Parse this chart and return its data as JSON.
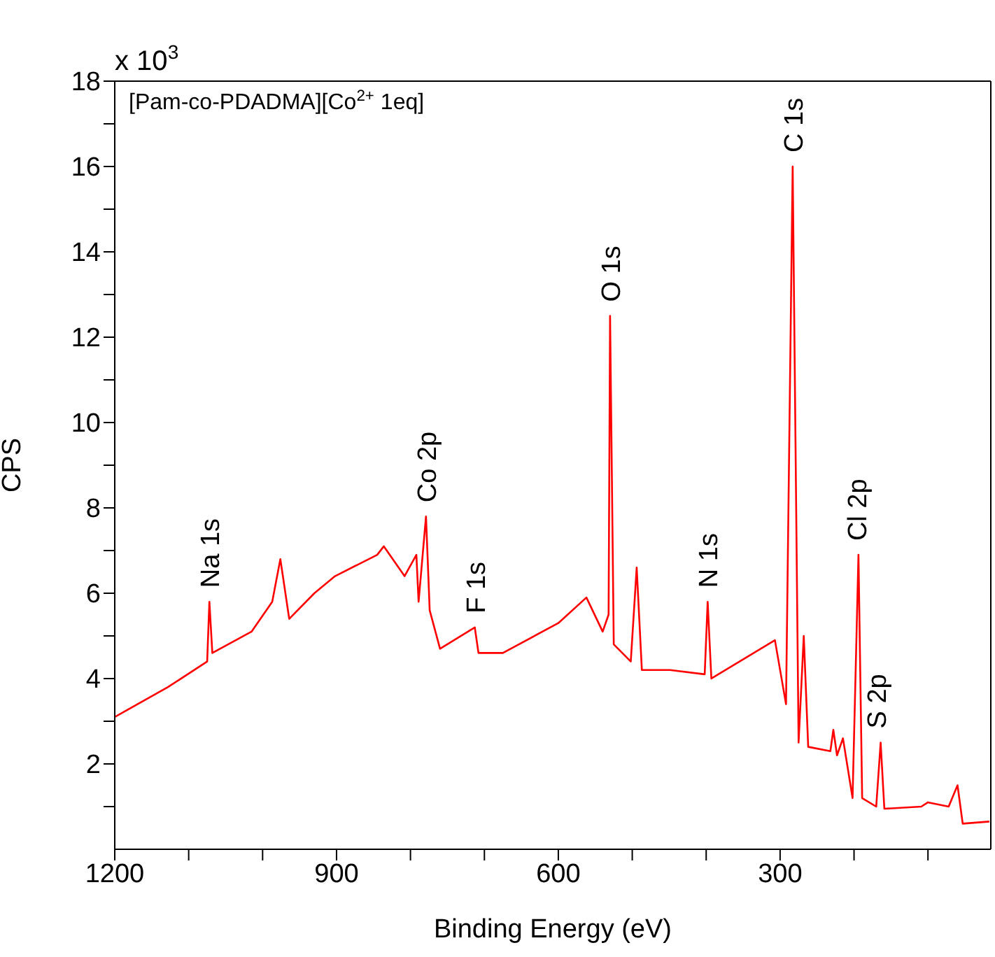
{
  "chart_data": {
    "type": "line",
    "title": "[Pam-co-PDADMA][Co$^{2+}$ 1eq]",
    "xlabel": "Binding Energy (eV)",
    "ylabel": "CPS",
    "x": [
      1200,
      1128,
      1075,
      1072,
      1068,
      1015,
      987,
      976,
      964,
      930,
      902,
      845,
      836,
      808,
      792,
      789,
      779,
      774,
      760,
      713,
      708,
      675,
      600,
      562,
      540,
      532,
      530,
      525,
      502,
      494,
      487,
      449,
      402,
      398,
      393,
      307,
      292,
      283,
      275,
      268,
      262,
      232,
      228,
      223,
      215,
      202,
      194,
      189,
      170,
      164,
      159,
      109,
      100,
      72,
      60,
      53,
      17
    ],
    "series": [
      {
        "color": "#ff0000",
        "values": [
          3.1,
          3.8,
          4.4,
          5.8,
          4.6,
          5.1,
          5.8,
          6.8,
          5.4,
          6.0,
          6.4,
          6.9,
          7.1,
          6.4,
          6.9,
          5.8,
          7.8,
          5.6,
          4.7,
          5.2,
          4.6,
          4.6,
          5.3,
          5.9,
          5.1,
          5.5,
          12.5,
          4.8,
          4.4,
          6.6,
          4.2,
          4.2,
          4.1,
          5.8,
          4.0,
          4.9,
          3.4,
          16.0,
          2.5,
          5.0,
          2.4,
          2.3,
          2.8,
          2.2,
          2.6,
          1.2,
          6.9,
          1.2,
          1.0,
          2.5,
          0.95,
          1.0,
          1.1,
          1.0,
          1.5,
          0.6,
          0.65
        ]
      }
    ],
    "xlim": [
      1200,
      15
    ],
    "ylim": [
      0,
      18
    ],
    "xticks": [
      1200,
      {
        "value": 1100,
        "label": null
      },
      {
        "value": 1000,
        "label": null
      },
      900,
      {
        "value": 800,
        "label": null
      },
      {
        "value": 700,
        "label": null
      },
      600,
      {
        "value": 500,
        "label": null
      },
      {
        "value": 400,
        "label": null
      },
      300,
      {
        "value": 200,
        "label": null
      },
      {
        "value": 100,
        "label": null
      }
    ],
    "yticks": [
      {
        "value": 1,
        "label": null
      },
      2,
      {
        "value": 3,
        "label": null
      },
      4,
      {
        "value": 5,
        "label": null
      },
      6,
      {
        "value": 7,
        "label": null
      },
      8,
      {
        "value": 9,
        "label": null
      },
      10,
      {
        "value": 11,
        "label": null
      },
      12,
      {
        "value": 13,
        "label": null
      },
      14,
      {
        "value": 15,
        "label": null
      },
      16,
      {
        "value": 17,
        "label": null
      },
      18
    ],
    "annotations": [
      "x 10$^{3}$",
      {
        "text": "Na 1s",
        "x": 1072,
        "y": 5.8
      },
      {
        "text": "Co 2p",
        "x": 779,
        "y": 7.8
      },
      {
        "text": "F 1s",
        "x": 713,
        "y": 5.2
      },
      {
        "text": "O 1s",
        "x": 530,
        "y": 12.5
      },
      {
        "text": "N 1s",
        "x": 398,
        "y": 5.8
      },
      {
        "text": "C 1s",
        "x": 283,
        "y": 16.0
      },
      {
        "text": "Cl 2p",
        "x": 197,
        "y": 6.9
      },
      {
        "text": "S 2p",
        "x": 170,
        "y": 2.5
      }
    ]
  }
}
